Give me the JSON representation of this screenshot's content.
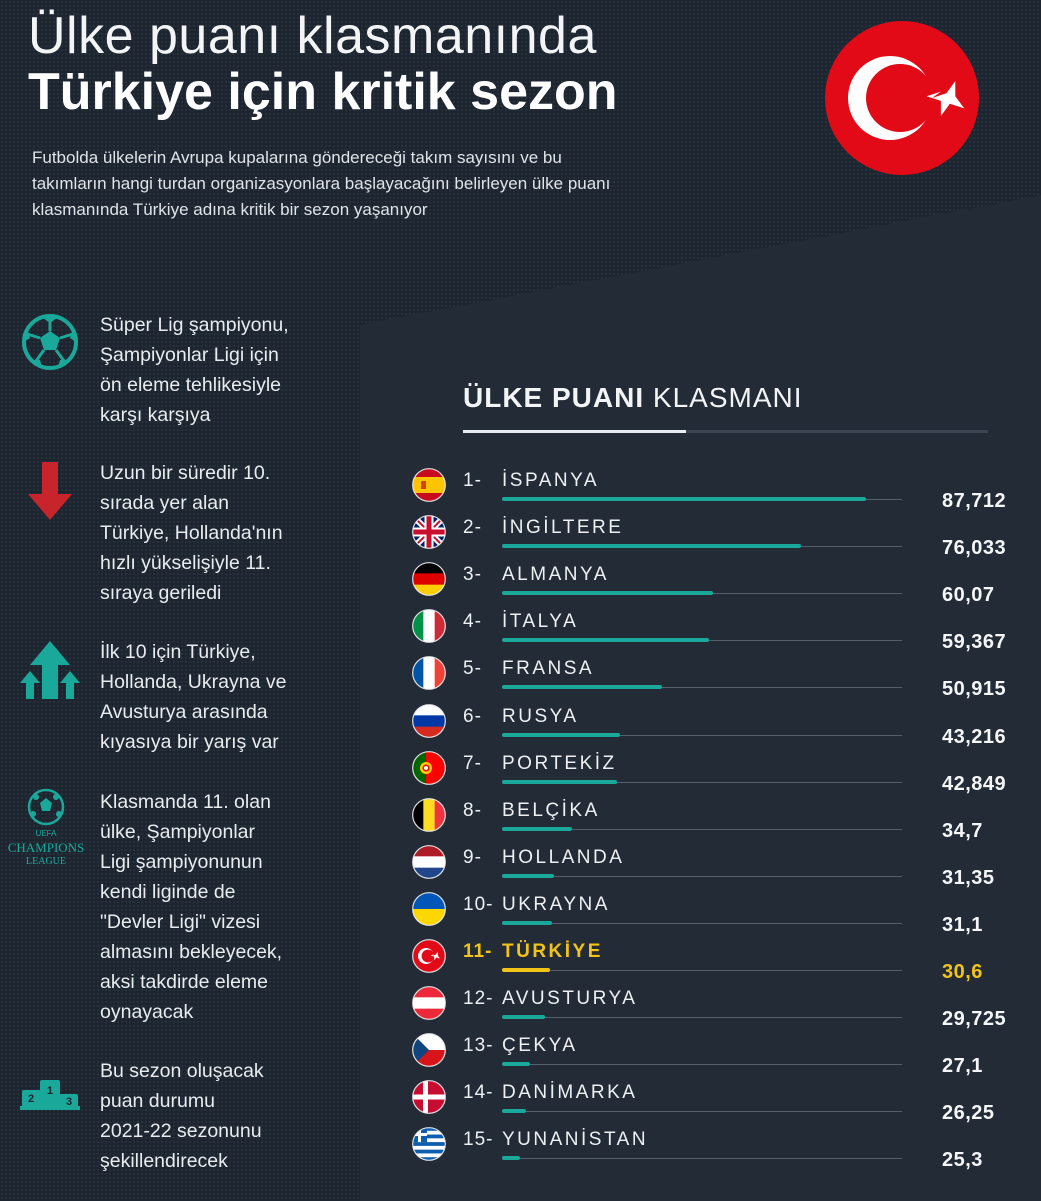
{
  "header": {
    "title_line1": "Ülke puanı klasmanında",
    "title_line2": "Türkiye için kritik sezon",
    "intro": "Futbolda ülkelerin Avrupa kupalarına göndereceği takım sayısını ve bu takımların hangi turdan organizasyonlara başlayacağını belirleyen ülke puanı klasmanında Türkiye adına kritik bir sezon yaşanıyor"
  },
  "colors": {
    "background": "#1d2530",
    "teal_bar": "#1aa89a",
    "highlight": "#f2c417",
    "turkey_red": "#e30a17",
    "arrow_red": "#c8242c"
  },
  "notes": [
    {
      "icon": "soccer-ball-icon",
      "text": "Süper Lig şampiyonu,\nŞampiyonlar Ligi için\nön eleme tehlikesiyle\nkarşı karşıya"
    },
    {
      "icon": "down-arrow-icon",
      "text": "Uzun bir süredir 10.\nsırada yer alan\nTürkiye, Hollanda'nın\nhızlı yükselişiyle 11.\nsıraya geriledi"
    },
    {
      "icon": "up-arrows-icon",
      "text": "İlk 10 için Türkiye,\nHollanda, Ukrayna ve\nAvusturya arasında\nkıyasıya bir yarış var"
    },
    {
      "icon": "champions-league-logo-icon",
      "logo_text_top": "UEFA",
      "logo_text_main": "CHAMPIONS",
      "logo_text_sub": "LEAGUE",
      "text": "Klasmanda 11. olan\nülke, Şampiyonlar\nLigi şampiyonunun\nkendi liginde de\n\"Devler Ligi\" vizesi\nalmasını bekleyecek,\naksi takdirde eleme\noynayacak"
    },
    {
      "icon": "podium-icon",
      "podium_numbers": [
        "2",
        "1",
        "3"
      ],
      "text": "Bu sezon oluşacak\npuan durumu\n2021-22 sezonunu\nşekillendirecek"
    }
  ],
  "ranking": {
    "title_bold": "ÜLKE PUANI",
    "title_light": "KLASMANI"
  },
  "chart_data": {
    "type": "bar",
    "title": "ÜLKE PUANI KLASMANI",
    "highlight_rank": 11,
    "xlim": [
      0,
      100
    ],
    "rows": [
      {
        "rank": "1-",
        "country": "İSPANYA",
        "flag": "spain-flag-icon",
        "value": 87.712,
        "label": "87,712"
      },
      {
        "rank": "2-",
        "country": "İNGİLTERE",
        "flag": "united-kingdom-flag-icon",
        "value": 76.033,
        "label": "76,033"
      },
      {
        "rank": "3-",
        "country": "ALMANYA",
        "flag": "germany-flag-icon",
        "value": 60.07,
        "label": "60,07"
      },
      {
        "rank": "4-",
        "country": "İTALYA",
        "flag": "italy-flag-icon",
        "value": 59.367,
        "label": "59,367"
      },
      {
        "rank": "5-",
        "country": "FRANSA",
        "flag": "france-flag-icon",
        "value": 50.915,
        "label": "50,915"
      },
      {
        "rank": "6-",
        "country": "RUSYA",
        "flag": "russia-flag-icon",
        "value": 43.216,
        "label": "43,216"
      },
      {
        "rank": "7-",
        "country": "PORTEKİZ",
        "flag": "portugal-flag-icon",
        "value": 42.849,
        "label": "42,849"
      },
      {
        "rank": "8-",
        "country": "BELÇİKA",
        "flag": "belgium-flag-icon",
        "value": 34.7,
        "label": "34,7"
      },
      {
        "rank": "9-",
        "country": "HOLLANDA",
        "flag": "netherlands-flag-icon",
        "value": 31.35,
        "label": "31,35"
      },
      {
        "rank": "10-",
        "country": "UKRAYNA",
        "flag": "ukraine-flag-icon",
        "value": 31.1,
        "label": "31,1"
      },
      {
        "rank": "11-",
        "country": "TÜRKİYE",
        "flag": "turkey-flag-icon",
        "value": 30.6,
        "label": "30,6"
      },
      {
        "rank": "12-",
        "country": "AVUSTURYA",
        "flag": "austria-flag-icon",
        "value": 29.725,
        "label": "29,725"
      },
      {
        "rank": "13-",
        "country": "ÇEKYA",
        "flag": "czechia-flag-icon",
        "value": 27.1,
        "label": "27,1"
      },
      {
        "rank": "14-",
        "country": "DANİMARKA",
        "flag": "denmark-flag-icon",
        "value": 26.25,
        "label": "26,25"
      },
      {
        "rank": "15-",
        "country": "YUNANİSTAN",
        "flag": "greece-flag-icon",
        "value": 25.3,
        "label": "25,3"
      }
    ]
  }
}
